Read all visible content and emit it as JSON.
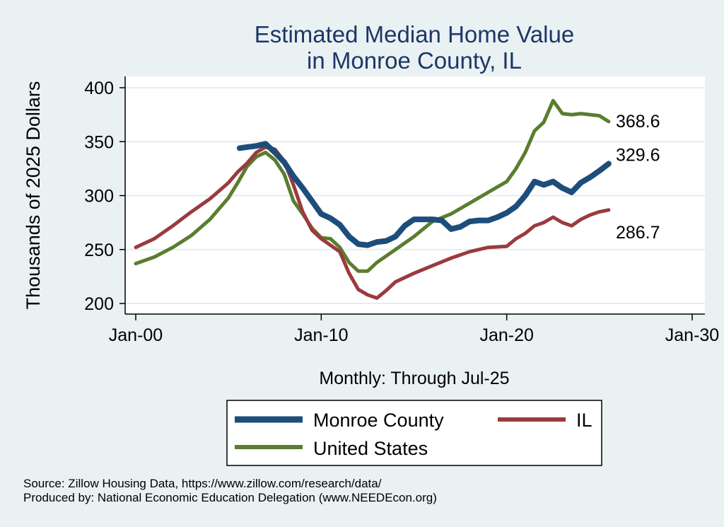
{
  "chart_data": {
    "type": "line",
    "title": [
      "Estimated Median Home Value",
      "in Monroe County, IL"
    ],
    "ylabel": "Thousands of 2025 Dollars",
    "xlabel": "Monthly: Through Jul-25",
    "ylim": [
      200,
      400
    ],
    "yticks": [
      200,
      250,
      300,
      350,
      400
    ],
    "xlim": [
      2000.0,
      2030.0
    ],
    "xticks": [
      {
        "value": 2000,
        "label": "Jan-00"
      },
      {
        "value": 2010,
        "label": "Jan-10"
      },
      {
        "value": 2020,
        "label": "Jan-20"
      },
      {
        "value": 2030,
        "label": "Jan-30"
      }
    ],
    "grid": true,
    "series": [
      {
        "name": "United States",
        "color": "#5a7d2e",
        "end_label": "368.6",
        "points": [
          [
            2000.0,
            237
          ],
          [
            2001.0,
            243
          ],
          [
            2002.0,
            252
          ],
          [
            2003.0,
            263
          ],
          [
            2004.0,
            278
          ],
          [
            2005.0,
            298
          ],
          [
            2005.5,
            312
          ],
          [
            2006.0,
            327
          ],
          [
            2006.5,
            336
          ],
          [
            2007.0,
            340
          ],
          [
            2007.5,
            333
          ],
          [
            2008.0,
            320
          ],
          [
            2008.5,
            295
          ],
          [
            2009.0,
            283
          ],
          [
            2009.5,
            270
          ],
          [
            2010.0,
            261
          ],
          [
            2010.5,
            260
          ],
          [
            2011.0,
            252
          ],
          [
            2011.5,
            238
          ],
          [
            2012.0,
            230
          ],
          [
            2012.5,
            230
          ],
          [
            2013.0,
            238
          ],
          [
            2014.0,
            250
          ],
          [
            2015.0,
            262
          ],
          [
            2016.0,
            276
          ],
          [
            2017.0,
            283
          ],
          [
            2018.0,
            293
          ],
          [
            2019.0,
            303
          ],
          [
            2020.0,
            313
          ],
          [
            2020.5,
            325
          ],
          [
            2021.0,
            340
          ],
          [
            2021.5,
            360
          ],
          [
            2022.0,
            368
          ],
          [
            2022.5,
            388
          ],
          [
            2023.0,
            376
          ],
          [
            2023.5,
            375
          ],
          [
            2024.0,
            376
          ],
          [
            2024.5,
            375
          ],
          [
            2025.0,
            374
          ],
          [
            2025.5,
            368.6
          ]
        ]
      },
      {
        "name": "IL",
        "color": "#9b3a3f",
        "end_label": "286.7",
        "points": [
          [
            2000.0,
            252
          ],
          [
            2001.0,
            260
          ],
          [
            2002.0,
            272
          ],
          [
            2003.0,
            285
          ],
          [
            2004.0,
            297
          ],
          [
            2005.0,
            312
          ],
          [
            2005.5,
            322
          ],
          [
            2006.0,
            330
          ],
          [
            2006.5,
            340
          ],
          [
            2007.0,
            345
          ],
          [
            2007.5,
            343
          ],
          [
            2008.0,
            332
          ],
          [
            2008.5,
            310
          ],
          [
            2009.0,
            285
          ],
          [
            2009.5,
            268
          ],
          [
            2010.0,
            260
          ],
          [
            2011.0,
            248
          ],
          [
            2011.5,
            228
          ],
          [
            2012.0,
            213
          ],
          [
            2012.5,
            208
          ],
          [
            2013.0,
            205
          ],
          [
            2013.5,
            212
          ],
          [
            2014.0,
            220
          ],
          [
            2015.0,
            228
          ],
          [
            2016.0,
            235
          ],
          [
            2017.0,
            242
          ],
          [
            2018.0,
            248
          ],
          [
            2019.0,
            252
          ],
          [
            2020.0,
            253
          ],
          [
            2020.5,
            260
          ],
          [
            2021.0,
            265
          ],
          [
            2021.5,
            272
          ],
          [
            2022.0,
            275
          ],
          [
            2022.5,
            280
          ],
          [
            2023.0,
            275
          ],
          [
            2023.5,
            272
          ],
          [
            2024.0,
            278
          ],
          [
            2024.5,
            282
          ],
          [
            2025.0,
            285
          ],
          [
            2025.5,
            286.7
          ]
        ]
      },
      {
        "name": "Monroe County",
        "color": "#1d4d7a",
        "end_label": "329.6",
        "points": [
          [
            2005.6,
            344
          ],
          [
            2006.0,
            345
          ],
          [
            2006.5,
            346
          ],
          [
            2007.0,
            348
          ],
          [
            2007.5,
            340
          ],
          [
            2008.0,
            331
          ],
          [
            2008.5,
            318
          ],
          [
            2009.0,
            307
          ],
          [
            2009.5,
            295
          ],
          [
            2010.0,
            283
          ],
          [
            2010.5,
            279
          ],
          [
            2011.0,
            273
          ],
          [
            2011.5,
            262
          ],
          [
            2012.0,
            255
          ],
          [
            2012.5,
            254
          ],
          [
            2013.0,
            257
          ],
          [
            2013.5,
            258
          ],
          [
            2014.0,
            262
          ],
          [
            2014.5,
            272
          ],
          [
            2015.0,
            278
          ],
          [
            2015.5,
            278
          ],
          [
            2016.0,
            278
          ],
          [
            2016.5,
            277
          ],
          [
            2017.0,
            269
          ],
          [
            2017.5,
            271
          ],
          [
            2018.0,
            276
          ],
          [
            2018.5,
            277
          ],
          [
            2019.0,
            277
          ],
          [
            2019.5,
            280
          ],
          [
            2020.0,
            284
          ],
          [
            2020.5,
            290
          ],
          [
            2021.0,
            300
          ],
          [
            2021.5,
            313
          ],
          [
            2022.0,
            310
          ],
          [
            2022.5,
            313
          ],
          [
            2023.0,
            307
          ],
          [
            2023.5,
            303
          ],
          [
            2024.0,
            312
          ],
          [
            2024.5,
            317
          ],
          [
            2025.0,
            323
          ],
          [
            2025.5,
            329.6
          ]
        ]
      }
    ],
    "legend": {
      "placement": "bottom",
      "entries": [
        "Monroe County",
        "IL",
        "United States"
      ]
    },
    "notes": [
      "Source: Zillow Housing Data, https://www.zillow.com/research/data/",
      "Produced by: National Economic Education Delegation (www.NEEDEcon.org)"
    ]
  }
}
